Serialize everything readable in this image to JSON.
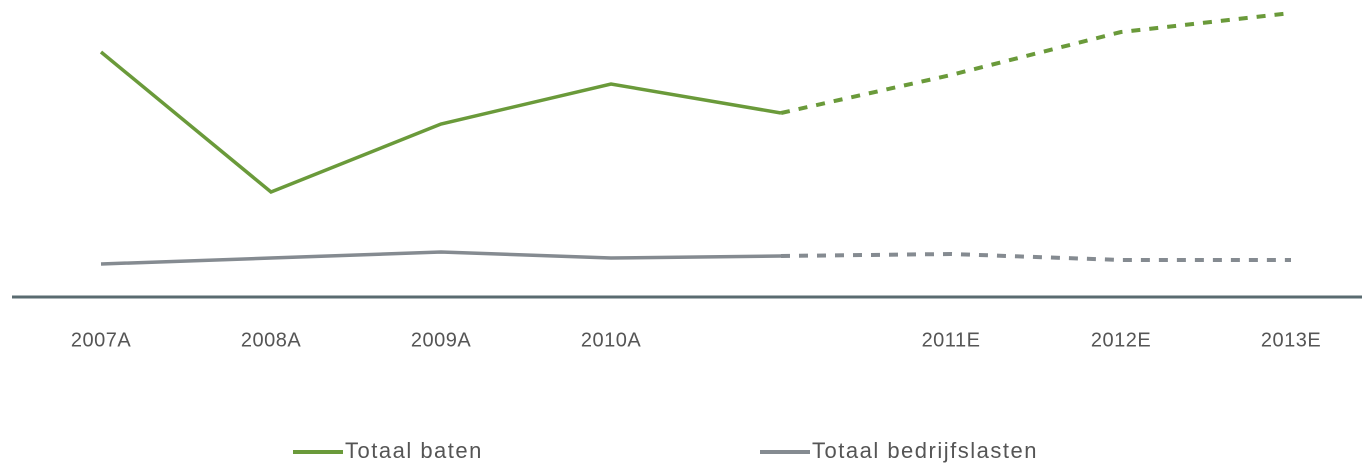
{
  "chart_data": {
    "type": "line",
    "categories": [
      "2007A",
      "2008A",
      "2009A",
      "2010A",
      null,
      "2011E",
      "2012E",
      "2013E"
    ],
    "series": [
      {
        "name": "Totaal baten",
        "color": "#6a9a3a",
        "values": [
          245,
          105,
          173,
          213,
          184,
          222,
          265,
          284
        ]
      },
      {
        "name": "Totaal bedrijfslasten",
        "color": "#858b91",
        "values": [
          33,
          39,
          45,
          39,
          41,
          43,
          37,
          37
        ]
      }
    ],
    "dashed_from_index": 4,
    "legend": "bottom"
  }
}
